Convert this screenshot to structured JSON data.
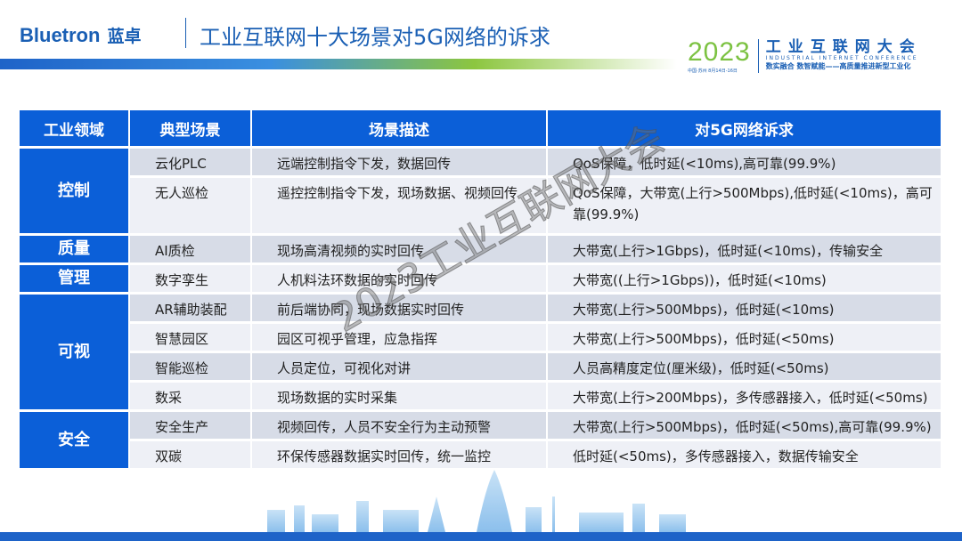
{
  "header": {
    "logo_en": "Bluetron",
    "logo_cn": "蓝卓",
    "title": "工业互联网十大场景对5G网络的诉求"
  },
  "conference": {
    "year": "2023",
    "date": "中国·苏州 8月14日-16日",
    "name": "工业互联网大会",
    "en": "INDUSTRIAL INTERNET CONFERENCE",
    "slogan": "数实融合 数智赋能——高质量推进新型工业化"
  },
  "watermark": "2023工业互联网大会",
  "table": {
    "columns": [
      "工业领域",
      "典型场景",
      "场景描述",
      "对5G网络诉求"
    ],
    "groups": [
      {
        "domain": "控制",
        "rows": [
          {
            "scene": "云化PLC",
            "desc": "远端控制指令下发，数据回传",
            "req": "QoS保障，低时延(<10ms),高可靠(99.9%)"
          },
          {
            "scene": "无人巡检",
            "desc": "遥控控制指令下发，现场数据、视频回传",
            "req": "QoS保障，大带宽(上行>500Mbps),低时延(<10ms)，高可靠(99.9%)"
          }
        ]
      },
      {
        "domain": "质量",
        "rows": [
          {
            "scene": "AI质检",
            "desc": "现场高清视频的实时回传",
            "req": "大带宽(上行>1Gbps)，低时延(<10ms)，传输安全"
          }
        ]
      },
      {
        "domain": "管理",
        "rows": [
          {
            "scene": "数字孪生",
            "desc": "人机料法环数据的实时回传",
            "req": "大带宽((上行>1Gbps))，低时延(<10ms)"
          }
        ]
      },
      {
        "domain": "可视",
        "rows": [
          {
            "scene": "AR辅助装配",
            "desc": "前后端协同，现场数据实时回传",
            "req": "大带宽(上行>500Mbps)，低时延(<10ms)"
          },
          {
            "scene": "智慧园区",
            "desc": "园区可视乎管理，应急指挥",
            "req": "大带宽(上行>500Mbps)，低时延(<50ms)"
          },
          {
            "scene": "智能巡检",
            "desc": "人员定位，可视化对讲",
            "req": "人员高精度定位(厘米级)，低时延(<50ms)"
          },
          {
            "scene": "数采",
            "desc": "现场数据的实时采集",
            "req": "大带宽(上行>200Mbps)，多传感器接入，低时延(<50ms)"
          }
        ]
      },
      {
        "domain": "安全",
        "rows": [
          {
            "scene": "安全生产",
            "desc": "视频回传，人员不安全行为主动预警",
            "req": "大带宽(上行>500Mbps)，低时延(<50ms),高可靠(99.9%)"
          },
          {
            "scene": "双碳",
            "desc": "环保传感器数据实时回传，统一监控",
            "req": "低时延(<50ms)，多传感器接入，数据传输安全"
          }
        ]
      }
    ]
  },
  "colors": {
    "header_blue": "#0b5fd8",
    "brand_blue": "#1a5fb4",
    "green": "#7cc242",
    "row_dark": "#d7dce7",
    "row_light": "#eef0f6"
  }
}
